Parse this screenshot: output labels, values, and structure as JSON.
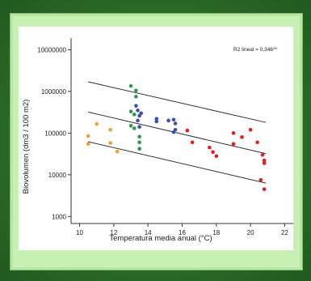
{
  "chart_data": {
    "type": "scatter",
    "xlabel": "Temperatura media anual (°C)",
    "ylabel": "Biovolumen (dm3 / 100 m2)",
    "annotation": "R2 lineal = 0,346**",
    "xlim": [
      9.5,
      22.5
    ],
    "ylim_log10": [
      2.83,
      7.28
    ],
    "y_scale": "log",
    "grid": false,
    "x_ticks": [
      10,
      12,
      14,
      16,
      18,
      20,
      22
    ],
    "y_ticks": [
      {
        "value": 1000,
        "label": "1000"
      },
      {
        "value": 10000,
        "label": "10000"
      },
      {
        "value": 100000,
        "label": "100000"
      },
      {
        "value": 1000000,
        "label": "1000000"
      },
      {
        "value": 10000000,
        "label": "10000000"
      }
    ],
    "lines": [
      {
        "name": "upper",
        "x": [
          10.5,
          20.9
        ],
        "y": [
          1700000,
          180000
        ]
      },
      {
        "name": "fit",
        "x": [
          10.5,
          20.9
        ],
        "y": [
          320000,
          32000
        ]
      },
      {
        "name": "lower",
        "x": [
          10.5,
          20.9
        ],
        "y": [
          62000,
          6300
        ]
      }
    ],
    "series": [
      {
        "color": "#f0a030",
        "points": [
          [
            10.5,
            85000
          ],
          [
            10.5,
            55000
          ],
          [
            11.0,
            165000
          ],
          [
            11.8,
            120000
          ],
          [
            11.8,
            58000
          ],
          [
            12.2,
            36000
          ]
        ]
      },
      {
        "color": "#2a9a4a",
        "points": [
          [
            13.0,
            1350000
          ],
          [
            13.3,
            1050000
          ],
          [
            13.3,
            750000
          ],
          [
            13.0,
            330000
          ],
          [
            13.2,
            280000
          ],
          [
            13.0,
            150000
          ],
          [
            13.2,
            130000
          ],
          [
            13.5,
            82000
          ],
          [
            13.5,
            60000
          ],
          [
            13.5,
            42000
          ]
        ]
      },
      {
        "color": "#3a4fb8",
        "points": [
          [
            13.3,
            450000
          ],
          [
            13.4,
            350000
          ],
          [
            13.6,
            300000
          ],
          [
            13.5,
            260000
          ],
          [
            13.4,
            200000
          ],
          [
            13.5,
            140000
          ],
          [
            14.5,
            220000
          ],
          [
            14.5,
            190000
          ],
          [
            15.2,
            200000
          ],
          [
            15.5,
            210000
          ],
          [
            15.6,
            170000
          ],
          [
            15.6,
            120000
          ],
          [
            15.5,
            105000
          ]
        ]
      },
      {
        "color": "#e02020",
        "points": [
          [
            16.3,
            115000
          ],
          [
            16.6,
            60000
          ],
          [
            17.6,
            45000
          ],
          [
            17.8,
            35000
          ],
          [
            18.0,
            28000
          ],
          [
            19.0,
            100000
          ],
          [
            19.0,
            55000
          ],
          [
            19.5,
            80000
          ],
          [
            20.0,
            120000
          ],
          [
            20.4,
            60000
          ],
          [
            20.7,
            30000
          ],
          [
            20.8,
            22000
          ],
          [
            20.8,
            19000
          ],
          [
            20.6,
            7500
          ],
          [
            20.8,
            4500
          ]
        ]
      }
    ]
  }
}
